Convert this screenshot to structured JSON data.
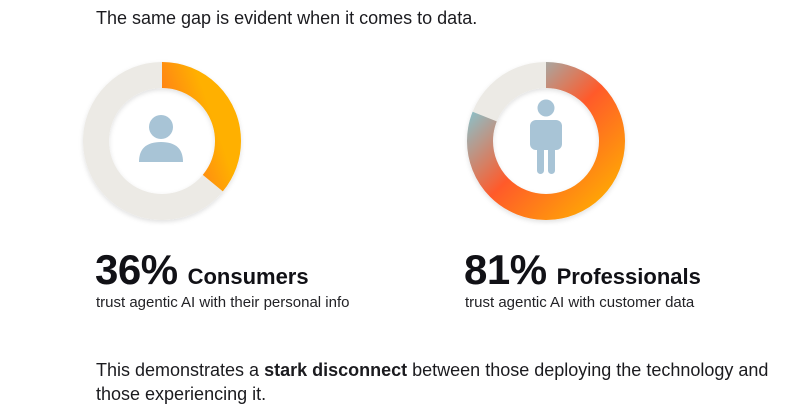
{
  "headline": "The same gap is evident when it comes to data.",
  "stats": [
    {
      "value": "36%",
      "label": "Consumers",
      "caption": "trust agentic AI with their personal info",
      "fraction": 0.36,
      "icon": "person-bust-icon"
    },
    {
      "value": "81%",
      "label": "Professionals",
      "caption": "trust agentic AI with customer data",
      "fraction": 0.81,
      "icon": "person-standing-icon"
    }
  ],
  "conclusion": {
    "before": "This demonstrates a ",
    "emphasis": "stark disconnect",
    "after": " between those deploying the technology and those experiencing it."
  },
  "colors": {
    "gradient": [
      "#6fd9ef",
      "#ff5a2a",
      "#ffb000"
    ],
    "track": "#eceae5",
    "icon": "#a8c4d6"
  }
}
